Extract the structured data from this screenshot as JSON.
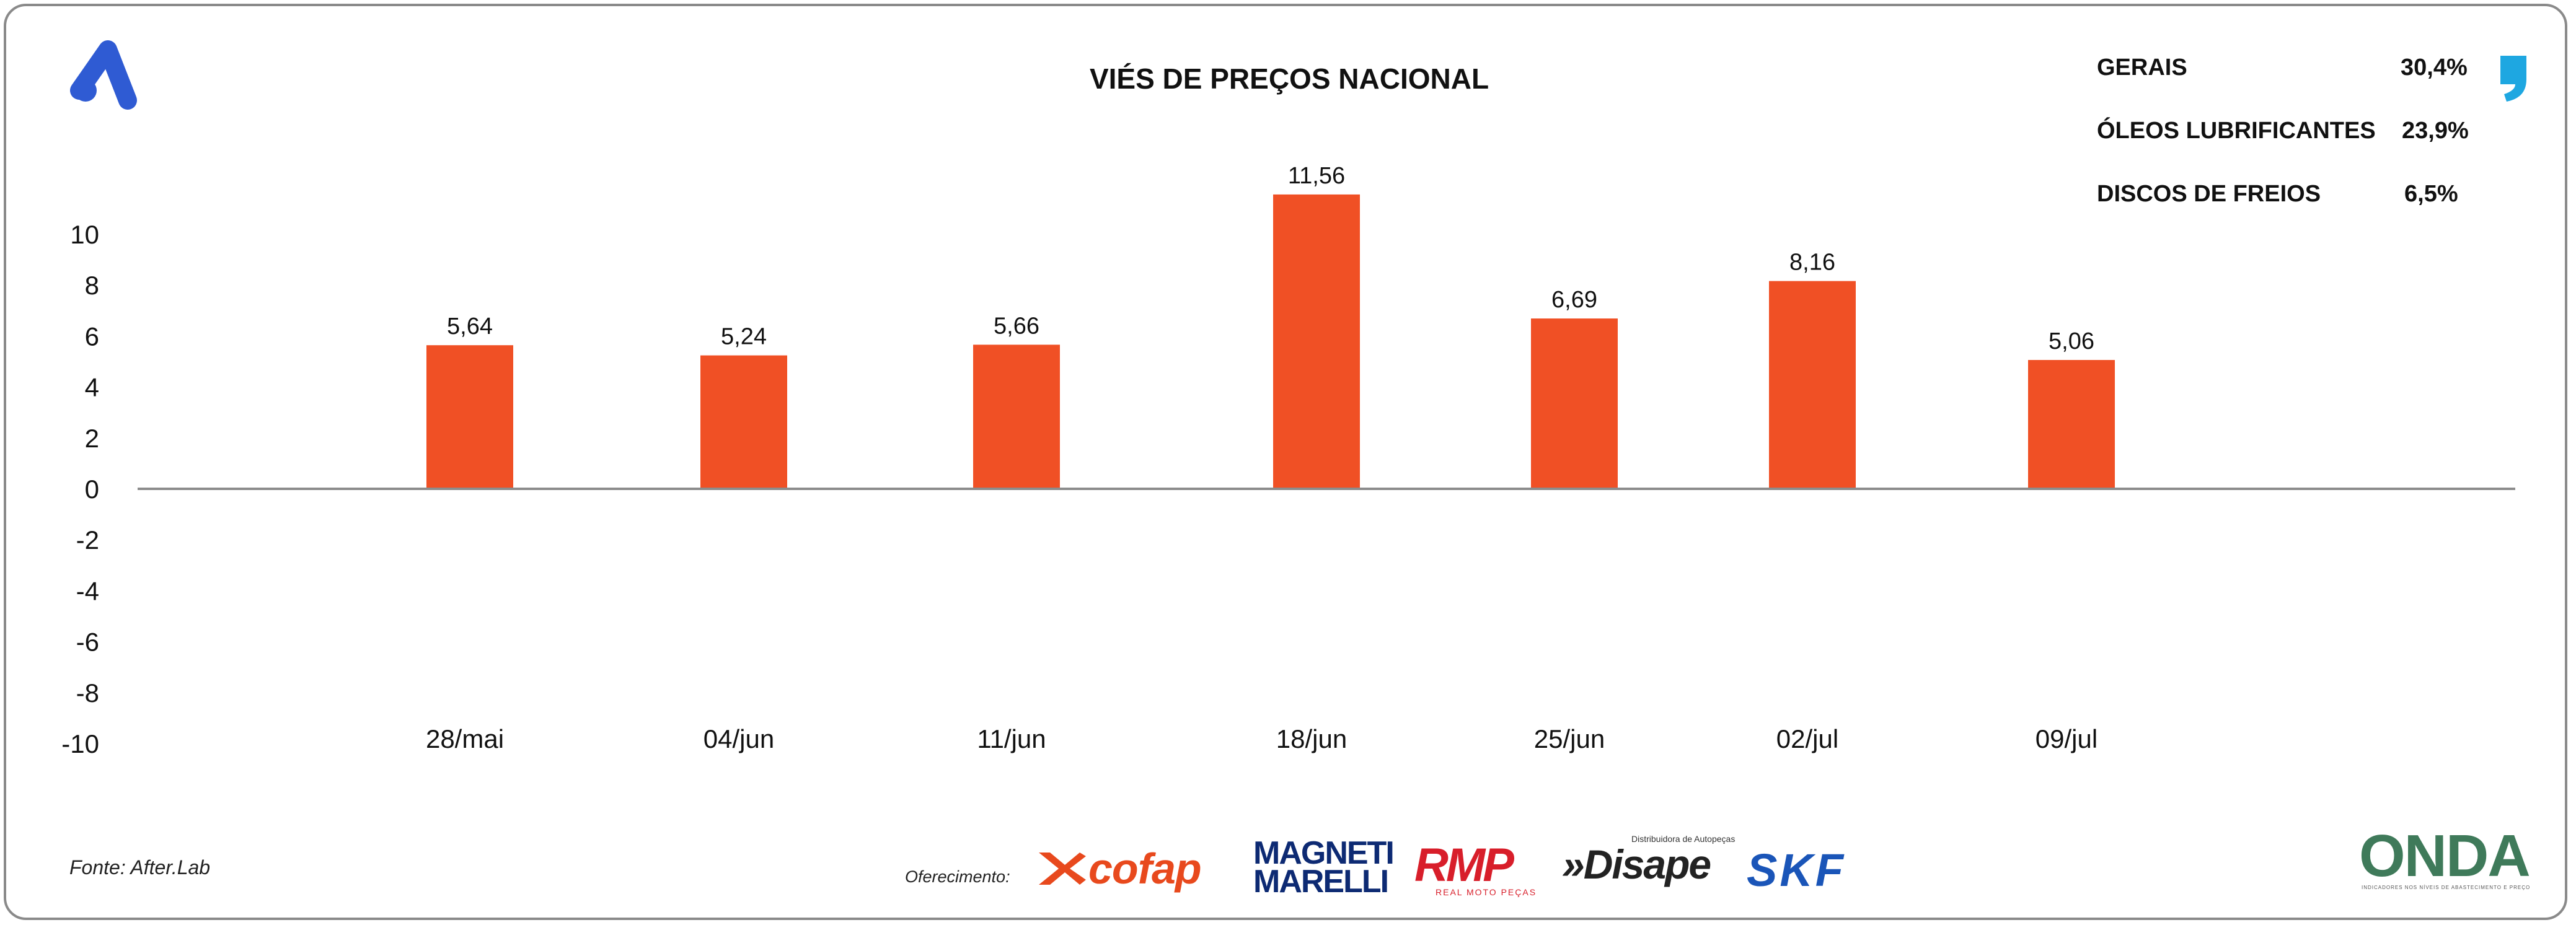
{
  "header": {
    "title": "VIÉS DE PREÇOS NACIONAL"
  },
  "stats": [
    {
      "label": "GERAIS",
      "value": "30,4%"
    },
    {
      "label": "ÓLEOS LUBRIFICANTES",
      "value": "23,9%"
    },
    {
      "label": "DISCOS DE FREIOS",
      "value": "6,5%"
    }
  ],
  "footer": {
    "source": "Fonte: After.Lab",
    "offer_label": "Oferecimento:",
    "sponsors": {
      "cofap": "cofap",
      "magneti_line1": "MAGNETI",
      "magneti_line2": "MARELLI",
      "rmp": "RMP",
      "rmp_sub": "REAL MOTO PEÇAS",
      "disape": "»Disape",
      "disape_sub": "Distribuidora de Autopeças",
      "skf": "SKF",
      "onda": "ONDA",
      "onda_sub": "INDICADORES NOS NÍVEIS DE ABASTECIMENTO E PREÇO"
    }
  },
  "colors": {
    "bar": "#f05025",
    "axis": "#8c8c8c",
    "brand_blue": "#2f5bd3",
    "quote_blue": "#1ea7e1"
  },
  "icons": {
    "brand": "brand-a-icon",
    "quote": "quote-icon"
  },
  "chart_data": {
    "type": "bar",
    "title": "VIÉS DE PREÇOS NACIONAL",
    "categories": [
      "28/mai",
      "04/jun",
      "11/jun",
      "18/jun",
      "25/jun",
      "02/jul",
      "09/jul"
    ],
    "values": [
      5.64,
      5.24,
      5.66,
      11.56,
      6.69,
      8.16,
      5.06
    ],
    "data_labels": [
      "5,64",
      "5,24",
      "5,66",
      "11,56",
      "6,69",
      "8,16",
      "5,06"
    ],
    "yticks": [
      "10",
      "8",
      "6",
      "4",
      "2",
      "0",
      "-2",
      "-4",
      "-6",
      "-8",
      "-10"
    ],
    "ylim": [
      -10,
      10
    ],
    "xlabel": "",
    "ylabel": "",
    "grid": false,
    "legend": false
  }
}
